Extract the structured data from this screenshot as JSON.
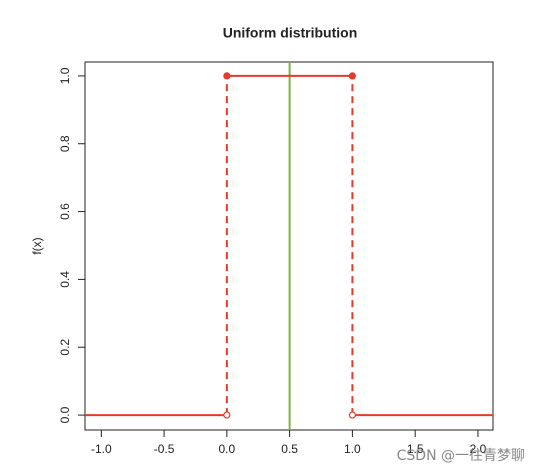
{
  "chart_data": {
    "type": "line",
    "title": "Uniform distribution",
    "y_label": "f(x)",
    "xlim": [
      -1.13,
      2.12
    ],
    "ylim": [
      -0.044,
      1.041
    ],
    "xticks": [
      {
        "value": -1,
        "label": "-1.0"
      },
      -0.5,
      {
        "value": 0,
        "label": "0.0"
      },
      0.5,
      {
        "value": 1,
        "label": "1.0"
      },
      1.5,
      {
        "value": 2,
        "label": "2.0"
      }
    ],
    "yticks": [
      {
        "value": 0,
        "label": "0.0"
      },
      0.2,
      0.4,
      0.6,
      0.8,
      {
        "value": 1,
        "label": "1.0"
      }
    ],
    "series": [
      {
        "color": "#e8392b",
        "style": "solid",
        "x": [
          -1.13,
          0
        ],
        "values": [
          0,
          0
        ]
      },
      {
        "color": "#e8392b",
        "style": "solid",
        "x": [
          0,
          1
        ],
        "values": [
          1,
          1
        ]
      },
      {
        "color": "#e8392b",
        "style": "solid",
        "x": [
          1,
          2.12
        ],
        "values": [
          0,
          0
        ]
      },
      {
        "color": "#e8392b",
        "style": "dashed",
        "x": [
          0,
          0
        ],
        "values": [
          0,
          1
        ]
      },
      {
        "color": "#e8392b",
        "style": "dashed",
        "x": [
          1,
          1
        ],
        "values": [
          0,
          1
        ]
      },
      {
        "color": "#e8392b",
        "style": "points-filled",
        "x": [
          0,
          1
        ],
        "values": [
          1,
          1
        ]
      },
      {
        "color": "#e8392b",
        "style": "points-open",
        "x": [
          0,
          1
        ],
        "values": [
          0,
          0
        ]
      }
    ],
    "vline": {
      "x": 0.5,
      "color": "#7cb342"
    },
    "watermark": "CSDN @一往青梦聊"
  }
}
